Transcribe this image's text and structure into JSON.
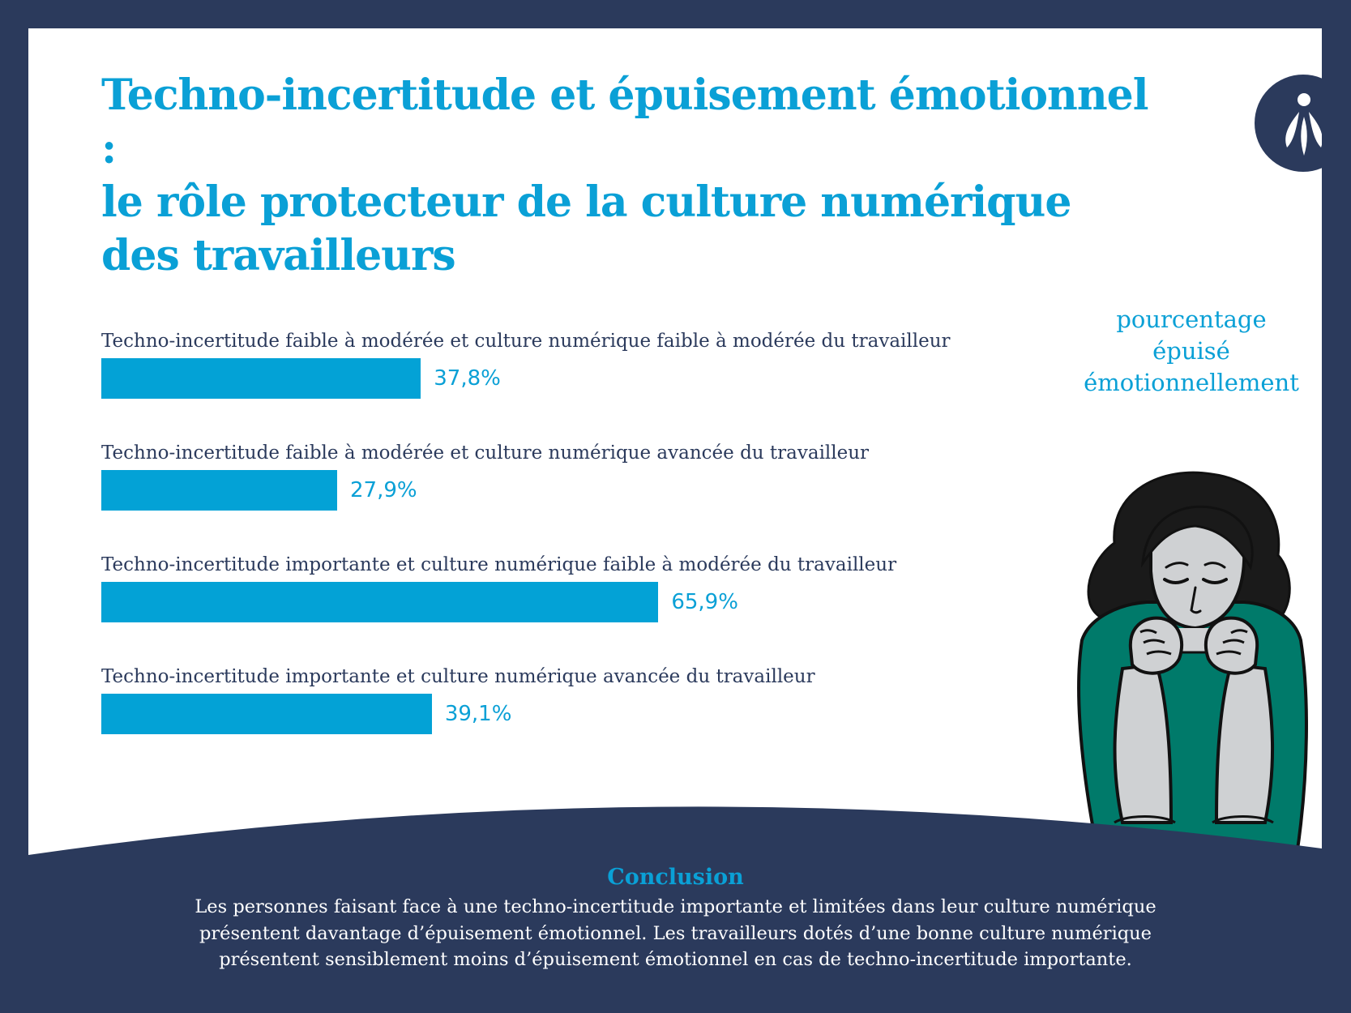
{
  "title": {
    "line1": "Techno-incertitude et épuisement émotionnel :",
    "line2": "le rôle protecteur de la culture numérique",
    "line3": "des travailleurs"
  },
  "legend_note": {
    "line1": "pourcentage",
    "line2": "épuisé",
    "line3": "émotionnellement"
  },
  "chart_data": {
    "type": "bar",
    "orientation": "horizontal",
    "categories": [
      "Techno-incertitude faible à modérée et culture numérique faible à modérée du travailleur",
      "Techno-incertitude faible à modérée et culture numérique avancée du travailleur",
      "Techno-incertitude importante et culture numérique faible à modérée du travailleur",
      "Techno-incertitude importante et culture numérique avancée du travailleur"
    ],
    "values": [
      37.8,
      27.9,
      65.9,
      39.1
    ],
    "value_labels": [
      "37,8%",
      "27,9%",
      "65,9%",
      "39,1%"
    ],
    "xlim": [
      0,
      100
    ],
    "grid": false,
    "bar_color": "#03a2d6"
  },
  "conclusion": {
    "title": "Conclusion",
    "line1": "Les personnes faisant face à une techno-incertitude importante et limitées dans leur culture numérique",
    "line2": "présentent davantage d’épuisement émotionnel. Les travailleurs dotés d’une bonne culture numérique",
    "line3": "présentent sensiblement moins d’épuisement émotionnel en cas de techno-incertitude importante."
  },
  "colors": {
    "navy": "#2b3a5c",
    "accent": "#0aa0d6",
    "sweater": "#007a6a",
    "skin": "#cfd1d3"
  },
  "icons": {
    "logo": "brand-logo-icon",
    "illustration": "exhausted-woman-illustration"
  }
}
